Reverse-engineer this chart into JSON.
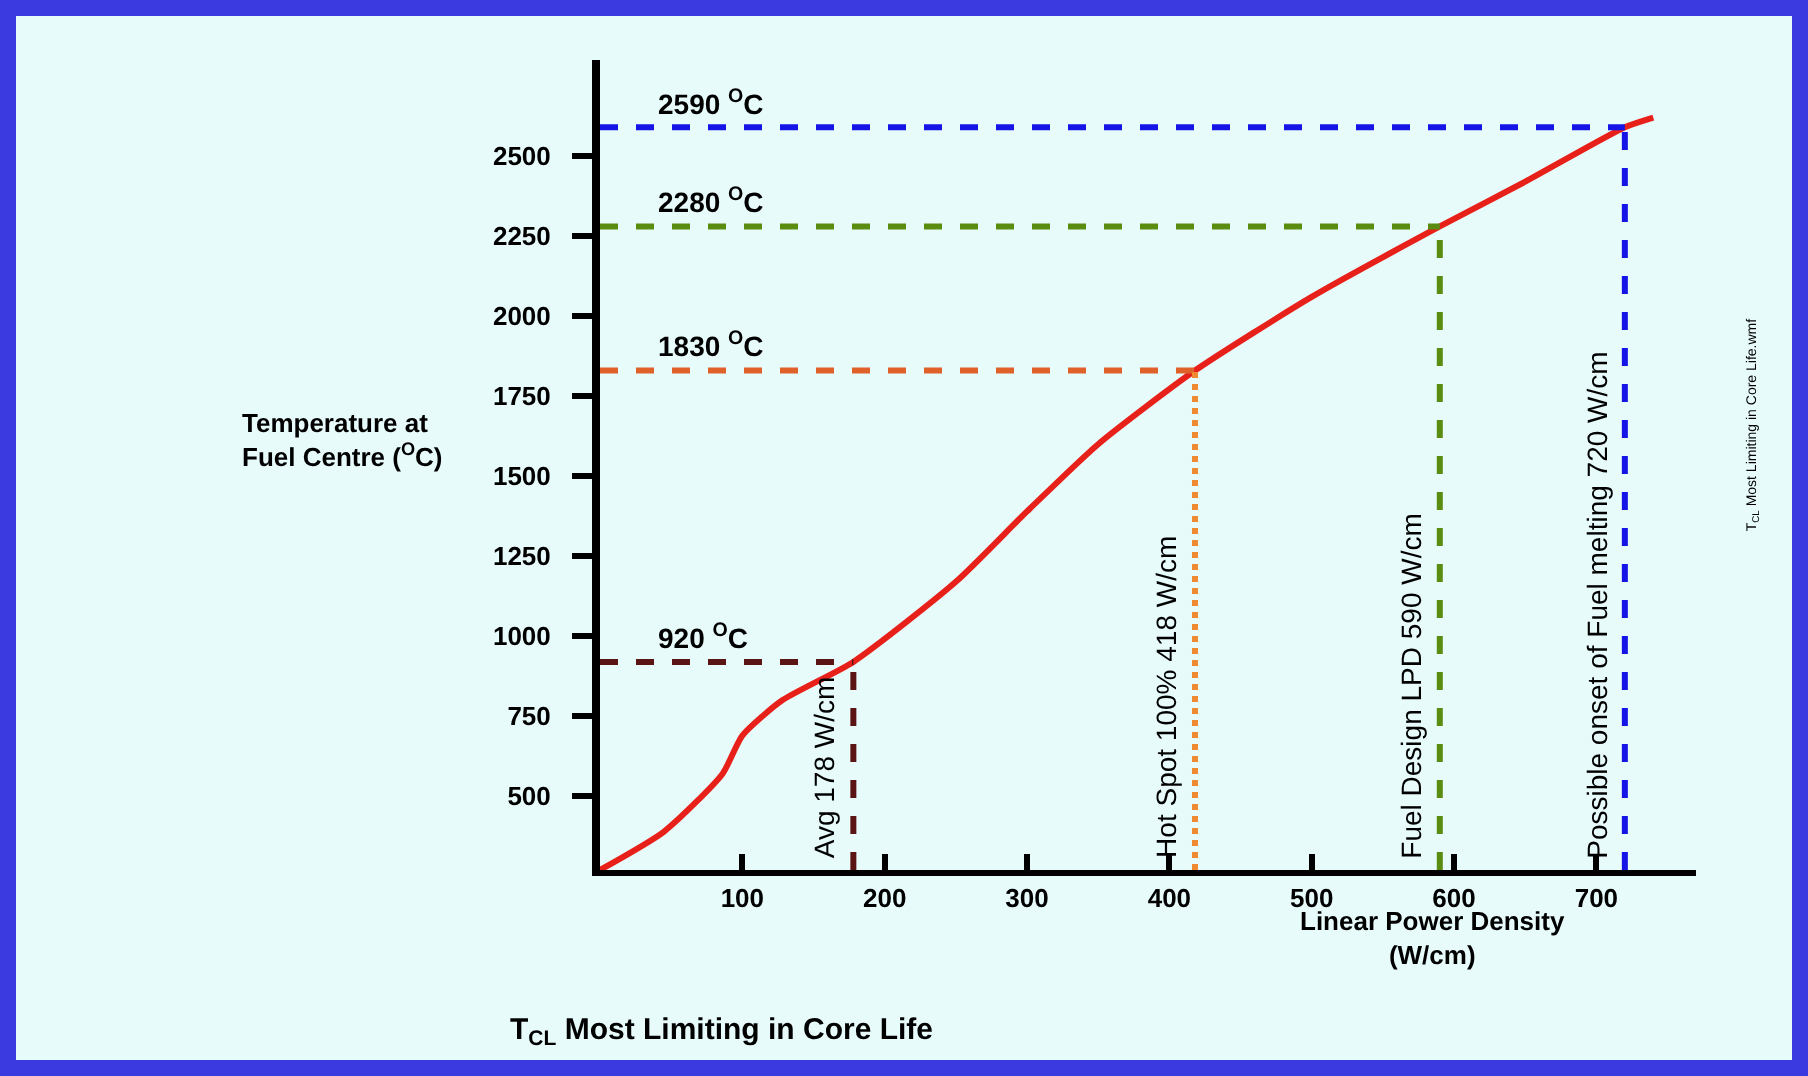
{
  "chart_data": {
    "type": "line",
    "title": "T$_{CL}$ Most Limiting in Core Life",
    "xlabel": "Linear Power Density\n(W/cm)",
    "ylabel": "Temperature at\nFuel Centre ($^{O}$C)",
    "x": [
      0,
      45,
      86,
      100,
      128,
      178,
      250,
      300,
      350,
      418,
      500,
      590,
      650,
      720,
      740
    ],
    "series": [
      {
        "color": "#e8201a",
        "values": [
          270,
          390,
          570,
          690,
          800,
          920,
          1170,
          1390,
          1600,
          1830,
          2060,
          2280,
          2420,
          2590,
          2620
        ]
      }
    ],
    "xlim": [
      0,
      770
    ],
    "ylim": [
      270,
      2800
    ],
    "xticks": [
      100,
      200,
      300,
      400,
      500,
      600,
      700
    ],
    "yticks": [
      500,
      750,
      1000,
      1250,
      1500,
      1750,
      2000,
      2250,
      2500
    ],
    "grid": false,
    "marker": "none",
    "line_style": "solid",
    "ref_lines": [
      {
        "axis": "y",
        "value": 920,
        "label": "920 $^{O}$C",
        "color": "#5a1414",
        "line_style": "dashed"
      },
      {
        "axis": "x",
        "value": 178,
        "label": "Avg 178 W/cm",
        "color": "#5a1414",
        "line_style": "dashed"
      },
      {
        "axis": "y",
        "value": 1830,
        "label": "1830 $^{O}$C",
        "color": "#e0602a",
        "line_style": "dashed"
      },
      {
        "axis": "x",
        "value": 418,
        "label": "Hot Spot 100% 418 W/cm",
        "color": "#f08a30",
        "line_style": "dotted"
      },
      {
        "axis": "y",
        "value": 2280,
        "label": "2280 $^{O}$C",
        "color": "#5a8c10",
        "line_style": "dashed"
      },
      {
        "axis": "x",
        "value": 590,
        "label": "Fuel Design LPD 590 W/cm",
        "color": "#5a8c10",
        "line_style": "dashed"
      },
      {
        "axis": "y",
        "value": 2590,
        "label": "2590 $^{O}$C",
        "color": "#1414e6",
        "line_style": "dashed"
      },
      {
        "axis": "x",
        "value": 720,
        "label": "Possible onset of Fuel melting 720 W/cm",
        "color": "#1414e6",
        "line_style": "dashed"
      }
    ],
    "annotations": [
      "T$_{CL}$ Most Limiting in Core Life.wmf"
    ]
  }
}
